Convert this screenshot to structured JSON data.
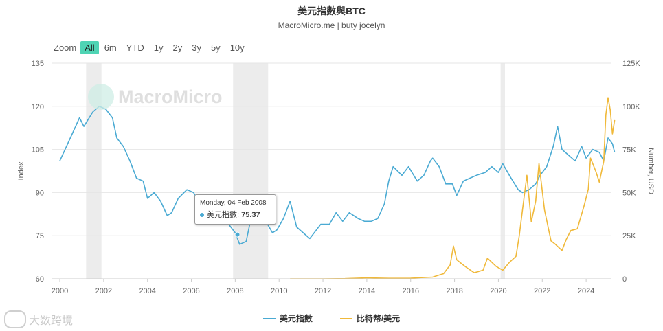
{
  "header": {
    "title": "美元指數與BTC",
    "subtitle": "MacroMicro.me | buty jocelyn"
  },
  "zoom": {
    "label": "Zoom",
    "options": [
      "All",
      "6m",
      "YTD",
      "1y",
      "2y",
      "3y",
      "5y",
      "10y"
    ],
    "active": "All"
  },
  "watermark": {
    "text": "MacroMicro"
  },
  "corner_mark": {
    "text": "大数跨境"
  },
  "tooltip": {
    "date": "Monday, 04 Feb 2008",
    "series": "美元指數",
    "value": "75.37"
  },
  "colors": {
    "dxy": "#4aaad3",
    "btc": "#f0b93a",
    "grid": "#e6e6e6",
    "band": "#ececec"
  },
  "chart_data": {
    "type": "line",
    "title": "美元指數與BTC",
    "subtitle": "MacroMicro.me | buty jocelyn",
    "x_ticks": [
      "2000",
      "2002",
      "2004",
      "2006",
      "2008",
      "2010",
      "2012",
      "2014",
      "2016",
      "2018",
      "2020",
      "2022",
      "2024"
    ],
    "y_left": {
      "label": "Index",
      "ticks": [
        "60",
        "75",
        "90",
        "105",
        "120",
        "135"
      ],
      "range": [
        60,
        135
      ]
    },
    "y_right": {
      "label": "Number, USD",
      "ticks": [
        "0",
        "25K",
        "50K",
        "75K",
        "100K",
        "125K"
      ],
      "range": [
        0,
        125000
      ]
    },
    "recession_bands": [
      [
        2001.2,
        2001.9
      ],
      [
        2007.9,
        2009.5
      ],
      [
        2020.1,
        2020.3
      ]
    ],
    "legend": "bottom-center",
    "grid": true,
    "series": [
      {
        "name": "美元指數",
        "axis": "left",
        "points": [
          [
            2000.0,
            101
          ],
          [
            2000.3,
            106
          ],
          [
            2000.6,
            111
          ],
          [
            2000.9,
            116
          ],
          [
            2001.1,
            113
          ],
          [
            2001.5,
            118
          ],
          [
            2001.8,
            120
          ],
          [
            2002.1,
            119
          ],
          [
            2002.4,
            116
          ],
          [
            2002.6,
            109
          ],
          [
            2002.9,
            106
          ],
          [
            2003.2,
            101
          ],
          [
            2003.5,
            95
          ],
          [
            2003.8,
            94
          ],
          [
            2004.0,
            88
          ],
          [
            2004.3,
            90
          ],
          [
            2004.6,
            87
          ],
          [
            2004.9,
            82
          ],
          [
            2005.1,
            83
          ],
          [
            2005.4,
            88
          ],
          [
            2005.8,
            91
          ],
          [
            2006.1,
            90
          ],
          [
            2006.4,
            86
          ],
          [
            2006.8,
            85
          ],
          [
            2007.1,
            84
          ],
          [
            2007.4,
            82
          ],
          [
            2007.7,
            79
          ],
          [
            2008.0,
            76
          ],
          [
            2008.2,
            72
          ],
          [
            2008.5,
            73
          ],
          [
            2008.8,
            84
          ],
          [
            2009.1,
            87
          ],
          [
            2009.4,
            80
          ],
          [
            2009.7,
            76
          ],
          [
            2009.9,
            77
          ],
          [
            2010.2,
            81
          ],
          [
            2010.5,
            87
          ],
          [
            2010.8,
            78
          ],
          [
            2011.1,
            76
          ],
          [
            2011.4,
            74
          ],
          [
            2011.7,
            77
          ],
          [
            2011.9,
            79
          ],
          [
            2012.3,
            79
          ],
          [
            2012.6,
            83
          ],
          [
            2012.9,
            80
          ],
          [
            2013.2,
            83
          ],
          [
            2013.6,
            81
          ],
          [
            2013.9,
            80
          ],
          [
            2014.2,
            80
          ],
          [
            2014.5,
            81
          ],
          [
            2014.8,
            86
          ],
          [
            2015.0,
            94
          ],
          [
            2015.2,
            99
          ],
          [
            2015.6,
            96
          ],
          [
            2015.9,
            99
          ],
          [
            2016.3,
            94
          ],
          [
            2016.6,
            96
          ],
          [
            2016.9,
            101
          ],
          [
            2017.0,
            102
          ],
          [
            2017.3,
            99
          ],
          [
            2017.6,
            93
          ],
          [
            2017.9,
            93
          ],
          [
            2018.1,
            89
          ],
          [
            2018.4,
            94
          ],
          [
            2018.7,
            95
          ],
          [
            2019.0,
            96
          ],
          [
            2019.4,
            97
          ],
          [
            2019.7,
            99
          ],
          [
            2020.0,
            97
          ],
          [
            2020.2,
            100
          ],
          [
            2020.5,
            96
          ],
          [
            2020.9,
            91
          ],
          [
            2021.1,
            90
          ],
          [
            2021.4,
            91
          ],
          [
            2021.7,
            93
          ],
          [
            2021.9,
            96
          ],
          [
            2022.2,
            99
          ],
          [
            2022.5,
            106
          ],
          [
            2022.7,
            113
          ],
          [
            2022.9,
            105
          ],
          [
            2023.2,
            103
          ],
          [
            2023.5,
            101
          ],
          [
            2023.8,
            106
          ],
          [
            2024.0,
            102
          ],
          [
            2024.3,
            105
          ],
          [
            2024.6,
            104
          ],
          [
            2024.8,
            101
          ],
          [
            2025.0,
            109
          ],
          [
            2025.2,
            107
          ],
          [
            2025.3,
            104
          ]
        ]
      },
      {
        "name": "比特幣/美元",
        "axis": "right",
        "points": [
          [
            2010.5,
            0
          ],
          [
            2012.0,
            0
          ],
          [
            2013.0,
            100
          ],
          [
            2014.0,
            600
          ],
          [
            2015.0,
            300
          ],
          [
            2016.0,
            400
          ],
          [
            2017.0,
            1000
          ],
          [
            2017.5,
            3000
          ],
          [
            2017.8,
            8000
          ],
          [
            2017.95,
            19000
          ],
          [
            2018.1,
            11000
          ],
          [
            2018.5,
            7000
          ],
          [
            2018.9,
            3500
          ],
          [
            2019.3,
            5000
          ],
          [
            2019.5,
            12000
          ],
          [
            2019.9,
            7200
          ],
          [
            2020.2,
            5000
          ],
          [
            2020.5,
            9500
          ],
          [
            2020.8,
            13000
          ],
          [
            2020.95,
            25000
          ],
          [
            2021.1,
            40000
          ],
          [
            2021.3,
            60000
          ],
          [
            2021.5,
            33000
          ],
          [
            2021.7,
            45000
          ],
          [
            2021.85,
            67000
          ],
          [
            2022.1,
            40000
          ],
          [
            2022.4,
            22000
          ],
          [
            2022.6,
            20000
          ],
          [
            2022.9,
            16500
          ],
          [
            2023.1,
            23000
          ],
          [
            2023.3,
            28000
          ],
          [
            2023.6,
            29000
          ],
          [
            2023.9,
            42000
          ],
          [
            2024.1,
            52000
          ],
          [
            2024.2,
            70000
          ],
          [
            2024.45,
            62000
          ],
          [
            2024.6,
            56000
          ],
          [
            2024.8,
            68000
          ],
          [
            2024.9,
            95000
          ],
          [
            2025.0,
            105000
          ],
          [
            2025.1,
            98000
          ],
          [
            2025.2,
            84000
          ],
          [
            2025.3,
            92000
          ]
        ]
      }
    ]
  }
}
